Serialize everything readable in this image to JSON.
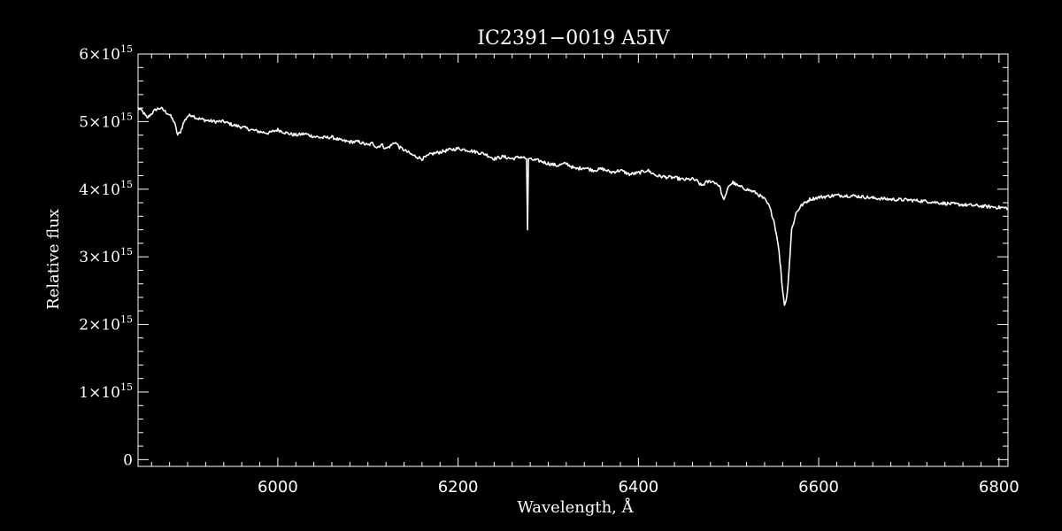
{
  "chart_data": {
    "type": "line",
    "title": "IC2391−0019   A5IV",
    "xlabel": "Wavelength, Å",
    "ylabel": "Relative flux",
    "xlim": [
      5845,
      6810
    ],
    "ylim": [
      -100000000000000.0,
      6000000000000000.0
    ],
    "x_ticks": [
      6000,
      6200,
      6400,
      6600,
      6800
    ],
    "x_tick_labels": [
      "6000",
      "6200",
      "6400",
      "6600",
      "6800"
    ],
    "y_ticks": [
      {
        "value": 0,
        "mantissa": "0",
        "times": "",
        "base": "",
        "exponent": ""
      },
      {
        "value": 1000000000000000.0,
        "mantissa": "1",
        "times": "×",
        "base": "10",
        "exponent": "15"
      },
      {
        "value": 2000000000000000.0,
        "mantissa": "2",
        "times": "×",
        "base": "10",
        "exponent": "15"
      },
      {
        "value": 3000000000000000.0,
        "mantissa": "3",
        "times": "×",
        "base": "10",
        "exponent": "15"
      },
      {
        "value": 4000000000000000.0,
        "mantissa": "4",
        "times": "×",
        "base": "10",
        "exponent": "15"
      },
      {
        "value": 5000000000000000.0,
        "mantissa": "5",
        "times": "×",
        "base": "10",
        "exponent": "15"
      },
      {
        "value": 6000000000000000.0,
        "mantissa": "6",
        "times": "×",
        "base": "10",
        "exponent": "15"
      }
    ],
    "grid": false,
    "colors": {
      "background": "#000000",
      "foreground": "#ffffff"
    },
    "series": [
      {
        "x": [
          5845,
          5850,
          5855,
          5860,
          5865,
          5870,
          5875,
          5880,
          5885,
          5889,
          5892,
          5896,
          5900,
          5905,
          5910,
          5920,
          5930,
          5940,
          5950,
          5960,
          5970,
          5980,
          5990,
          6000,
          6010,
          6020,
          6030,
          6040,
          6050,
          6060,
          6070,
          6080,
          6090,
          6100,
          6105,
          6110,
          6115,
          6120,
          6125,
          6130,
          6135,
          6140,
          6150,
          6160,
          6165,
          6170,
          6180,
          6190,
          6200,
          6210,
          6220,
          6230,
          6240,
          6250,
          6260,
          6270,
          6276,
          6277,
          6278,
          6280,
          6290,
          6300,
          6310,
          6320,
          6330,
          6340,
          6350,
          6360,
          6370,
          6380,
          6390,
          6400,
          6410,
          6420,
          6430,
          6440,
          6450,
          6460,
          6465,
          6470,
          6475,
          6480,
          6485,
          6490,
          6494,
          6497,
          6500,
          6505,
          6510,
          6520,
          6530,
          6540,
          6545,
          6550,
          6555,
          6558,
          6560,
          6562,
          6564,
          6566,
          6568,
          6570,
          6575,
          6580,
          6585,
          6590,
          6600,
          6620,
          6640,
          6660,
          6680,
          6700,
          6720,
          6740,
          6760,
          6780,
          6800,
          6810
        ],
        "y": [
          5200000000000000.0,
          5150000000000000.0,
          5050000000000000.0,
          5120000000000000.0,
          5180000000000000.0,
          5200000000000000.0,
          5150000000000000.0,
          5100000000000000.0,
          5000000000000000.0,
          4800000000000000.0,
          4850000000000000.0,
          5000000000000000.0,
          5080000000000000.0,
          5100000000000000.0,
          5050000000000000.0,
          5020000000000000.0,
          5000000000000000.0,
          5000000000000000.0,
          4950000000000000.0,
          4920000000000000.0,
          4880000000000000.0,
          4850000000000000.0,
          4830000000000000.0,
          4880000000000000.0,
          4830000000000000.0,
          4800000000000000.0,
          4820000000000000.0,
          4780000000000000.0,
          4760000000000000.0,
          4770000000000000.0,
          4720000000000000.0,
          4700000000000000.0,
          4700000000000000.0,
          4650000000000000.0,
          4680000000000000.0,
          4620000000000000.0,
          4660000000000000.0,
          4600000000000000.0,
          4640000000000000.0,
          4700000000000000.0,
          4620000000000000.0,
          4580000000000000.0,
          4500000000000000.0,
          4450000000000000.0,
          4480000000000000.0,
          4520000000000000.0,
          4550000000000000.0,
          4580000000000000.0,
          4600000000000000.0,
          4580000000000000.0,
          4550000000000000.0,
          4520000000000000.0,
          4450000000000000.0,
          4480000000000000.0,
          4450000000000000.0,
          4480000000000000.0,
          4450000000000000.0,
          3400000000000000.0,
          4450000000000000.0,
          4440000000000000.0,
          4420000000000000.0,
          4380000000000000.0,
          4350000000000000.0,
          4380000000000000.0,
          4300000000000000.0,
          4320000000000000.0,
          4280000000000000.0,
          4300000000000000.0,
          4250000000000000.0,
          4280000000000000.0,
          4220000000000000.0,
          4240000000000000.0,
          4280000000000000.0,
          4200000000000000.0,
          4180000000000000.0,
          4170000000000000.0,
          4140000000000000.0,
          4150000000000000.0,
          4120000000000000.0,
          4050000000000000.0,
          4100000000000000.0,
          4120000000000000.0,
          4100000000000000.0,
          4050000000000000.0,
          3850000000000000.0,
          3900000000000000.0,
          4050000000000000.0,
          4100000000000000.0,
          4050000000000000.0,
          4000000000000000.0,
          3950000000000000.0,
          3850000000000000.0,
          3750000000000000.0,
          3550000000000000.0,
          3200000000000000.0,
          2800000000000000.0,
          2500000000000000.0,
          2300000000000000.0,
          2350000000000000.0,
          2600000000000000.0,
          3000000000000000.0,
          3400000000000000.0,
          3650000000000000.0,
          3750000000000000.0,
          3800000000000000.0,
          3850000000000000.0,
          3880000000000000.0,
          3910000000000000.0,
          3900000000000000.0,
          3870000000000000.0,
          3850000000000000.0,
          3840000000000000.0,
          3820000000000000.0,
          3790000000000000.0,
          3770000000000000.0,
          3750000000000000.0,
          3730000000000000.0,
          3720000000000000.0
        ]
      }
    ]
  }
}
